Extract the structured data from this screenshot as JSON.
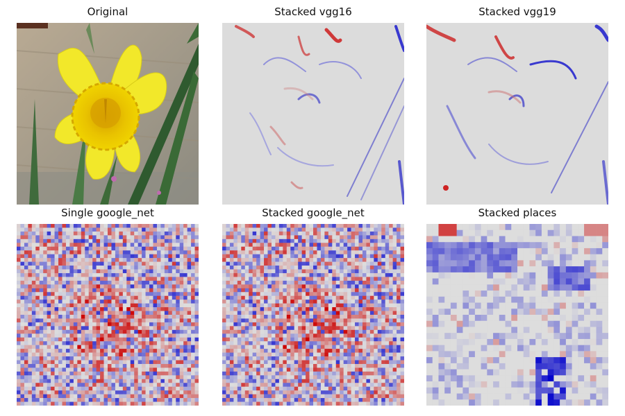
{
  "panels": [
    {
      "title": "Original",
      "kind": "photo"
    },
    {
      "title": "Stacked vgg16",
      "kind": "saliency-smooth"
    },
    {
      "title": "Stacked vgg19",
      "kind": "saliency-smooth"
    },
    {
      "title": "Single google_net",
      "kind": "saliency-noise"
    },
    {
      "title": "Stacked google_net",
      "kind": "saliency-noise"
    },
    {
      "title": "Stacked places",
      "kind": "saliency-blocky"
    }
  ],
  "colormap": {
    "negative": "#0000cc",
    "neutral": "#dddddd",
    "positive": "#cc0000"
  }
}
